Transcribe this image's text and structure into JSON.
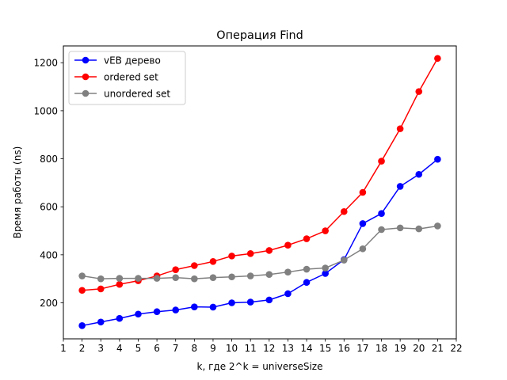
{
  "chart_data": {
    "type": "line",
    "title": "Операция Find",
    "xlabel": "k, где 2^k = universeSize",
    "ylabel": "Время работы (ns)",
    "xlim": [
      1,
      22
    ],
    "ylim": [
      50,
      1270
    ],
    "xticks": [
      1,
      2,
      3,
      4,
      5,
      6,
      7,
      8,
      9,
      10,
      11,
      12,
      13,
      14,
      15,
      16,
      17,
      18,
      19,
      20,
      21,
      22
    ],
    "yticks": [
      200,
      400,
      600,
      800,
      1000,
      1200
    ],
    "grid": false,
    "legend_position": "top-left",
    "x": [
      2,
      3,
      4,
      5,
      6,
      7,
      8,
      9,
      10,
      11,
      12,
      13,
      14,
      15,
      16,
      17,
      18,
      19,
      20,
      21
    ],
    "series": [
      {
        "name": "vEB дерево",
        "color": "#0000ff",
        "values": [
          105,
          120,
          135,
          153,
          163,
          170,
          183,
          182,
          200,
          203,
          212,
          238,
          285,
          322,
          380,
          530,
          572,
          685,
          735,
          798
        ]
      },
      {
        "name": "ordered set",
        "color": "#ff0000",
        "values": [
          252,
          258,
          277,
          292,
          312,
          338,
          355,
          372,
          395,
          405,
          418,
          440,
          467,
          500,
          580,
          660,
          790,
          925,
          1080,
          1218
        ]
      },
      {
        "name": "unordered set",
        "color": "#808080",
        "values": [
          312,
          300,
          302,
          302,
          302,
          305,
          300,
          305,
          308,
          312,
          318,
          328,
          340,
          345,
          378,
          425,
          505,
          512,
          508,
          520
        ]
      }
    ]
  }
}
